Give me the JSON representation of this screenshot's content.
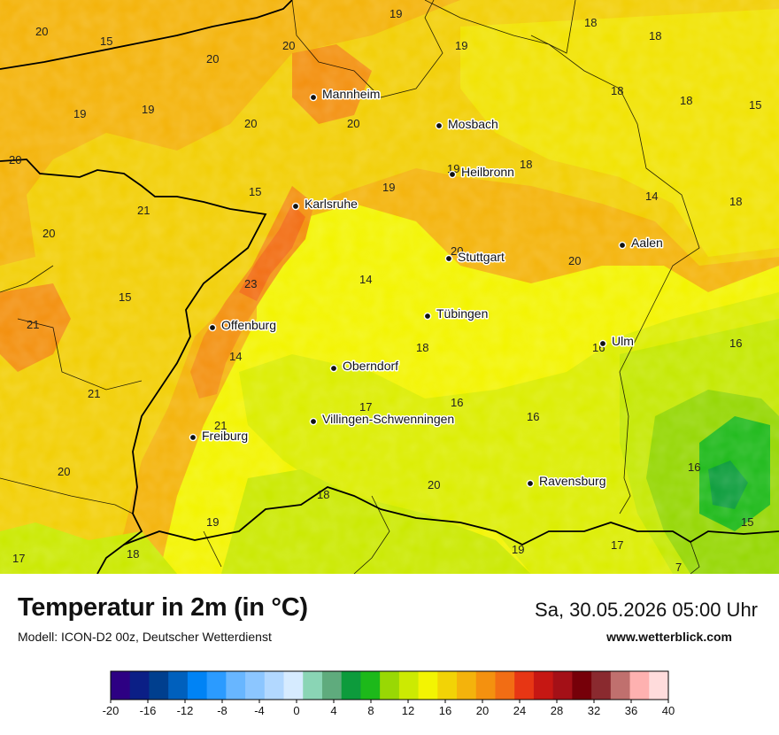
{
  "title": "Temperatur in 2m (in °C)",
  "model": "Modell: ICON-D2 00z, Deutscher Wetterdienst",
  "datetime": "Sa, 30.05.2026 05:00 Uhr",
  "website": "www.wetterblick.com",
  "cities": [
    {
      "name": "Mannheim"
    },
    {
      "name": "Mosbach"
    },
    {
      "name": "Heilbronn"
    },
    {
      "name": "Karlsruhe"
    },
    {
      "name": "Stuttgart"
    },
    {
      "name": "Aalen"
    },
    {
      "name": "Tübingen"
    },
    {
      "name": "Offenburg"
    },
    {
      "name": "Ulm"
    },
    {
      "name": "Oberndorf"
    },
    {
      "name": "Villingen-Schwenningen"
    },
    {
      "name": "Freiburg"
    },
    {
      "name": "Ravensburg"
    }
  ],
  "values": [
    "19",
    "18",
    "20",
    "15",
    "20",
    "19",
    "18",
    "18",
    "15",
    "19",
    "20",
    "19",
    "20",
    "18",
    "20",
    "19",
    "18",
    "15",
    "19",
    "14",
    "18",
    "21",
    "20",
    "20",
    "20",
    "15",
    "23",
    "14",
    "20",
    "21",
    "16",
    "14",
    "18",
    "16",
    "21",
    "17",
    "16",
    "21",
    "16",
    "20",
    "18",
    "16",
    "20",
    "19",
    "15",
    "18",
    "17",
    "19",
    "17",
    "7"
  ],
  "legend": {
    "colors": [
      "#2d0083",
      "#0b1f86",
      "#003f8e",
      "#0060bd",
      "#0083f5",
      "#2b9bff",
      "#68b6ff",
      "#8cc6ff",
      "#b2d8ff",
      "#d6ebff",
      "#8ad5b5",
      "#5fab7d",
      "#0d9b3c",
      "#1db91a",
      "#99d804",
      "#ccea02",
      "#f3f402",
      "#f2d306",
      "#f4b30c",
      "#f4910f",
      "#f26d14",
      "#e73614",
      "#c61713",
      "#a41017",
      "#760009",
      "#8a2a2f",
      "#c0706e",
      "#feb1b0",
      "#ffdcdc"
    ],
    "ticks": [
      "-20",
      "-16",
      "-12",
      "-8",
      "-4",
      "0",
      "4",
      "8",
      "12",
      "16",
      "20",
      "24",
      "28",
      "32",
      "36",
      "40"
    ]
  }
}
